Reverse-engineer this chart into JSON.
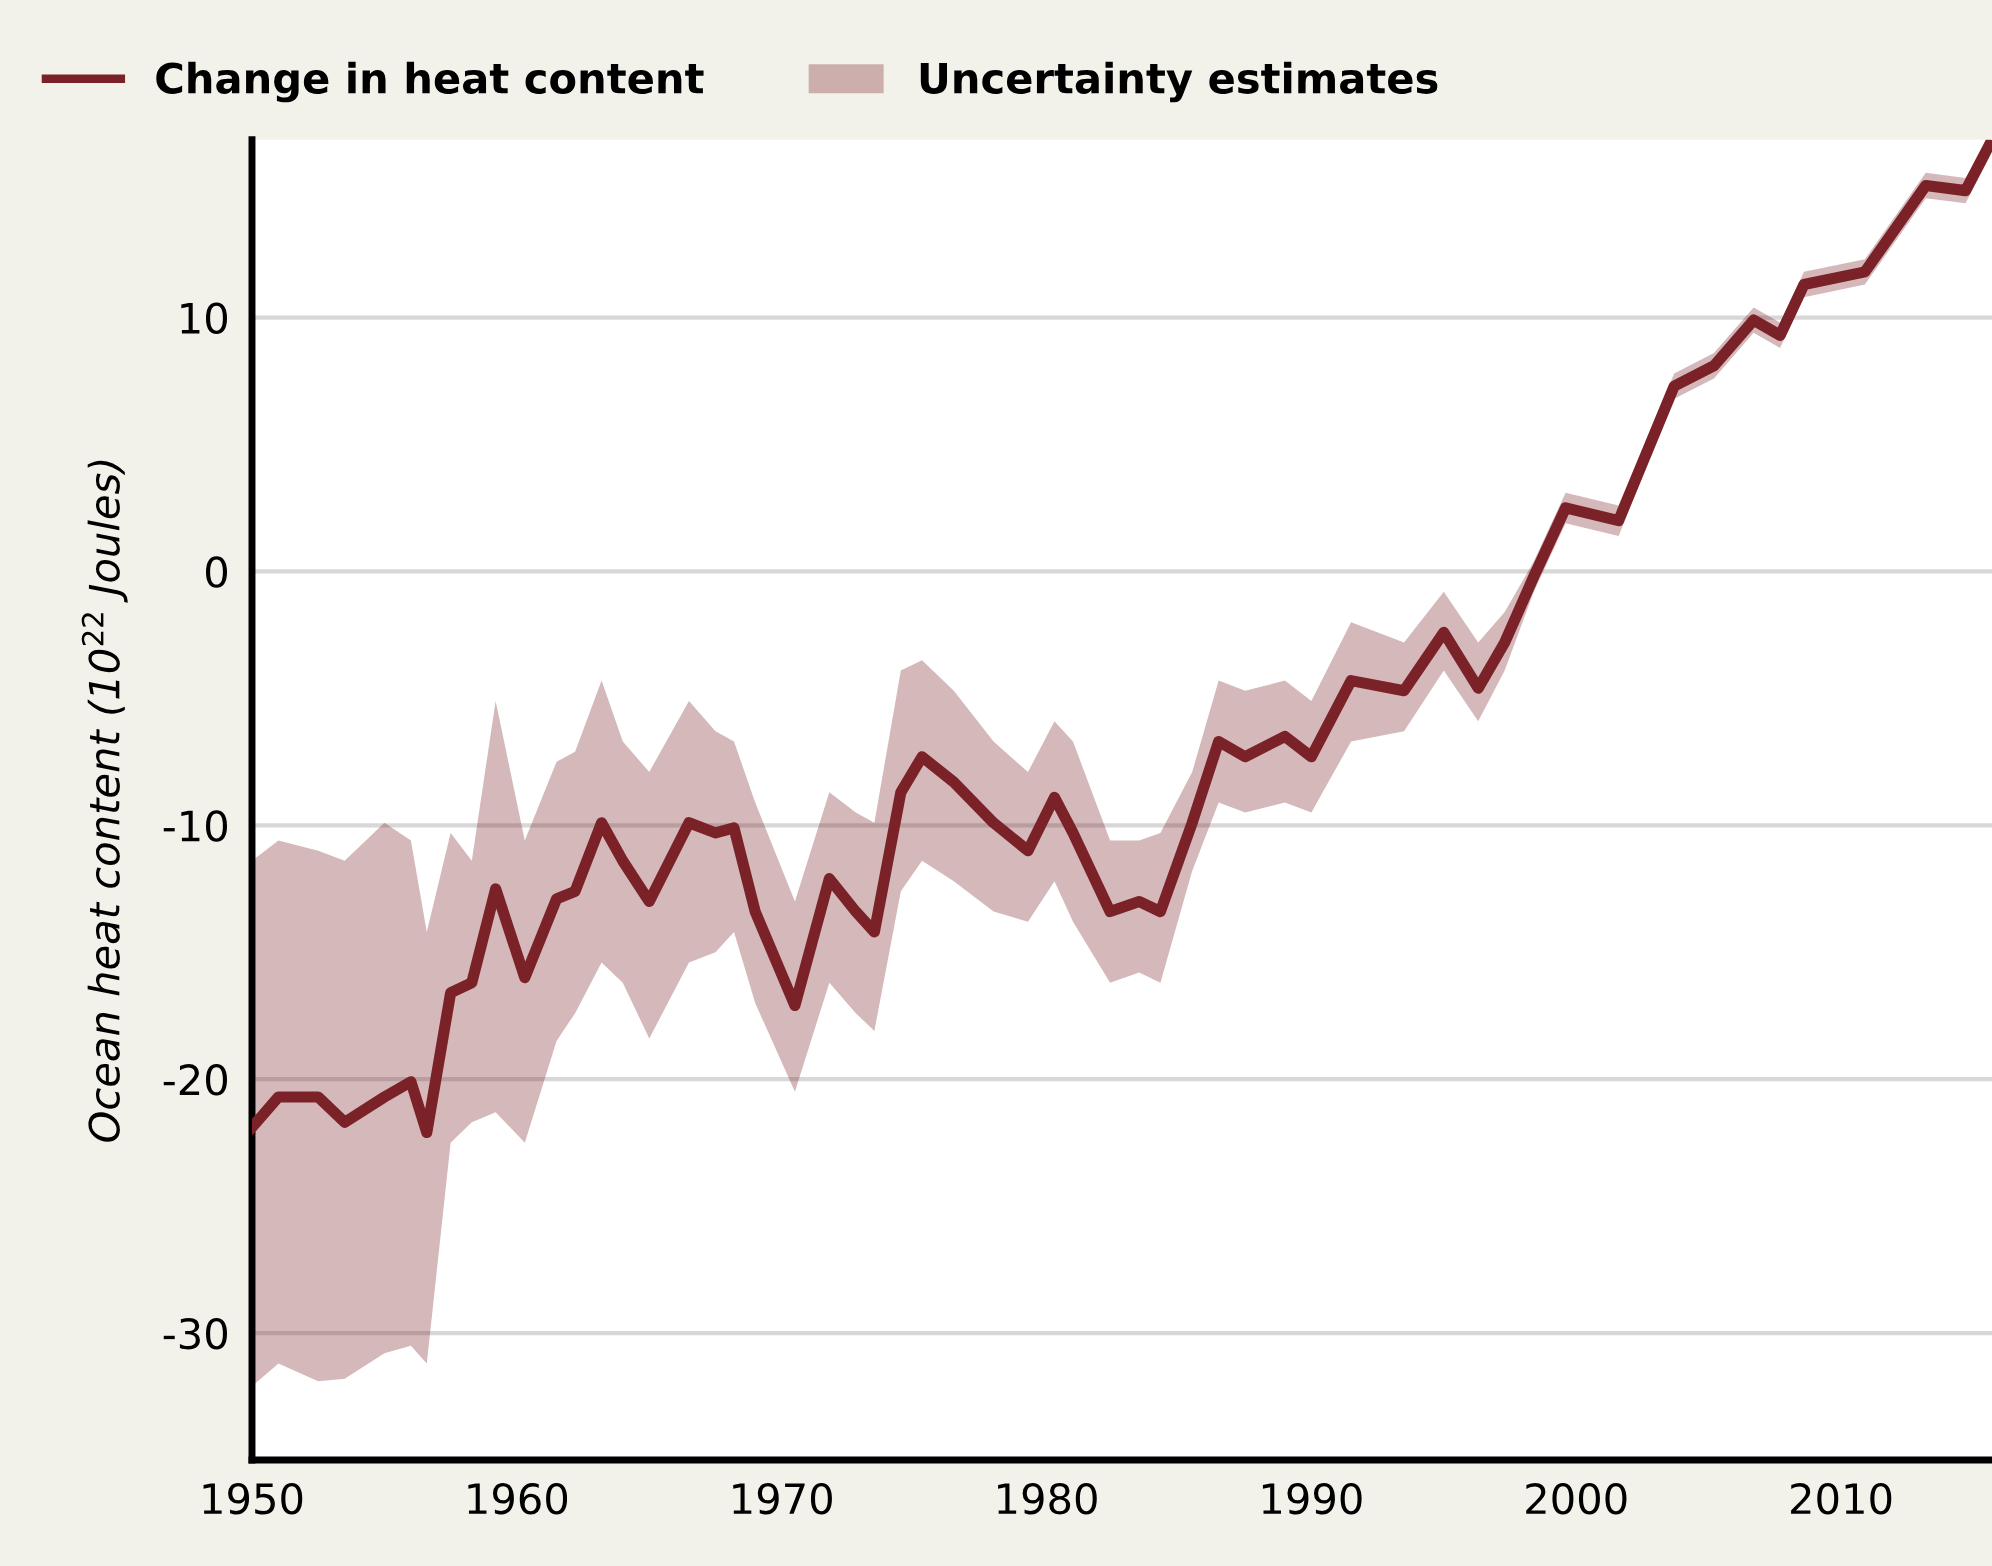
{
  "chart_data": {
    "type": "line",
    "ylabel": "Ocean heat content (10$^{22}$ Joules)",
    "x": [
      1950.0,
      1951.0,
      1952.5,
      1953.5,
      1955.0,
      1956.0,
      1956.6,
      1957.5,
      1958.3,
      1959.2,
      1960.3,
      1961.5,
      1962.2,
      1963.2,
      1964.0,
      1965.0,
      1966.5,
      1967.5,
      1968.2,
      1969.0,
      1970.5,
      1971.8,
      1972.8,
      1973.5,
      1974.5,
      1975.3,
      1976.5,
      1978.0,
      1979.3,
      1980.3,
      1981.0,
      1982.4,
      1983.5,
      1984.3,
      1985.5,
      1986.5,
      1987.5,
      1989.0,
      1990.0,
      1991.5,
      1993.5,
      1995.0,
      1996.3,
      1997.3,
      1998.4,
      1999.6,
      2001.6,
      2003.7,
      2005.2,
      2006.7,
      2007.7,
      2008.6,
      2010.9,
      2013.2,
      2014.7,
      2015.6
    ],
    "series": [
      {
        "name": "Change in heat content",
        "color": "#7a2228",
        "values": [
          -21.9,
          -20.7,
          -20.7,
          -21.7,
          -20.7,
          -20.1,
          -22.1,
          -16.6,
          -16.2,
          -12.5,
          -16.0,
          -12.9,
          -12.6,
          -9.9,
          -11.4,
          -13.0,
          -9.9,
          -10.3,
          -10.1,
          -13.4,
          -17.1,
          -12.1,
          -13.4,
          -14.2,
          -8.7,
          -7.3,
          -8.3,
          -9.9,
          -11.0,
          -8.9,
          -10.3,
          -13.4,
          -13.0,
          -13.4,
          -9.9,
          -6.7,
          -7.3,
          -6.5,
          -7.3,
          -4.3,
          -4.7,
          -2.4,
          -4.6,
          -2.8,
          -0.2,
          2.5,
          2.0,
          7.3,
          8.1,
          9.9,
          9.3,
          11.3,
          11.8,
          15.2,
          15.0,
          16.8
        ],
        "lower": [
          -32.1,
          -31.2,
          -31.9,
          -31.8,
          -30.8,
          -30.5,
          -31.2,
          -22.5,
          -21.7,
          -21.3,
          -22.5,
          -18.5,
          -17.4,
          -15.4,
          -16.2,
          -18.4,
          -15.4,
          -15.0,
          -14.2,
          -17.0,
          -20.5,
          -16.2,
          -17.4,
          -18.1,
          -12.6,
          -11.4,
          -12.2,
          -13.4,
          -13.8,
          -12.2,
          -13.8,
          -16.2,
          -15.8,
          -16.2,
          -11.8,
          -9.1,
          -9.5,
          -9.1,
          -9.5,
          -6.7,
          -6.3,
          -3.9,
          -5.9,
          -3.9,
          -0.8,
          1.9,
          1.4,
          6.8,
          7.6,
          9.4,
          8.8,
          10.8,
          11.3,
          14.7,
          14.5,
          16.3
        ],
        "upper": [
          -11.4,
          -10.6,
          -11.0,
          -11.4,
          -9.9,
          -10.6,
          -14.2,
          -10.3,
          -11.4,
          -5.1,
          -10.6,
          -7.5,
          -7.1,
          -4.3,
          -6.7,
          -7.9,
          -5.1,
          -6.3,
          -6.7,
          -9.1,
          -13.0,
          -8.7,
          -9.5,
          -9.9,
          -3.9,
          -3.5,
          -4.7,
          -6.7,
          -7.9,
          -5.9,
          -6.7,
          -10.6,
          -10.6,
          -10.3,
          -7.9,
          -4.3,
          -4.7,
          -4.3,
          -5.1,
          -2.0,
          -2.8,
          -0.8,
          -2.8,
          -1.6,
          0.4,
          3.1,
          2.6,
          7.8,
          8.6,
          10.4,
          9.8,
          11.8,
          12.3,
          15.7,
          15.5,
          17.0
        ]
      }
    ],
    "annotations": [
      "Uncertainty estimates"
    ],
    "xlim": [
      1950,
      2015.7
    ],
    "ylim": [
      -35,
      17
    ],
    "xticks": [
      1950,
      1960,
      1970,
      1980,
      1990,
      2000,
      2010
    ],
    "yticks": [
      -30,
      -20,
      -10,
      0,
      10
    ],
    "grid": "y",
    "legend": "top",
    "line_style": "solid",
    "marker": "none"
  }
}
